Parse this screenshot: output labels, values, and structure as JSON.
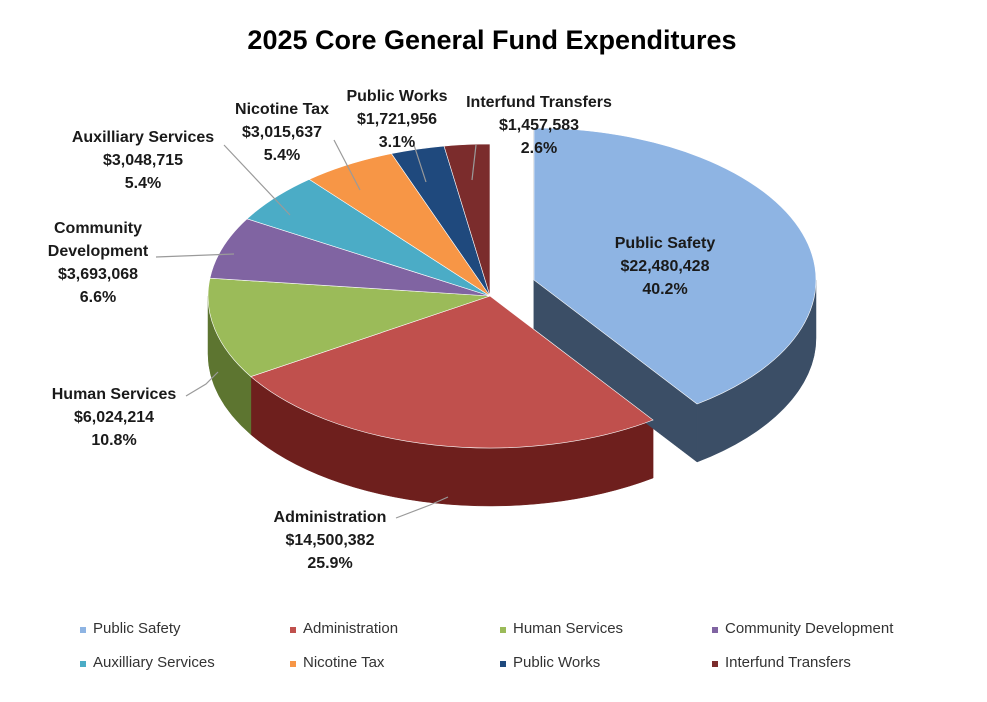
{
  "chart_data": {
    "type": "pie",
    "title": "2025 Core General Fund Expenditures",
    "legend_position": "bottom",
    "slices": [
      {
        "name": "Public Safety",
        "amount": "$22,480,428",
        "percent": "40.2%",
        "value": 22480428,
        "color": "#8EB4E3",
        "dark": "#3B4E66"
      },
      {
        "name": "Administration",
        "amount": "$14,500,382",
        "percent": "25.9%",
        "value": 14500382,
        "color": "#C0504D",
        "dark": "#6E1F1D"
      },
      {
        "name": "Human Services",
        "amount": "$6,024,214",
        "percent": "10.8%",
        "value": 6024214,
        "color": "#9BBB59",
        "dark": "#5D7530"
      },
      {
        "name": "Community Development",
        "label_lines": [
          "Community",
          "Development"
        ],
        "amount": "$3,693,068",
        "percent": "6.6%",
        "value": 3693068,
        "color": "#8064A2",
        "dark": "#4A3761"
      },
      {
        "name": "Auxilliary Services",
        "amount": "$3,048,715",
        "percent": "5.4%",
        "value": 3048715,
        "color": "#4BACC6",
        "dark": "#2A6E80"
      },
      {
        "name": "Nicotine Tax",
        "amount": "$3,015,637",
        "percent": "5.4%",
        "value": 3015637,
        "color": "#F79646",
        "dark": "#A35A1C"
      },
      {
        "name": "Public Works",
        "amount": "$1,721,956",
        "percent": "3.1%",
        "value": 1721956,
        "color": "#1F497D",
        "dark": "#102845"
      },
      {
        "name": "Interfund Transfers",
        "amount": "$1,457,583",
        "percent": "2.6%",
        "value": 1457583,
        "color": "#7B2C2C",
        "dark": "#4A1616"
      }
    ]
  }
}
